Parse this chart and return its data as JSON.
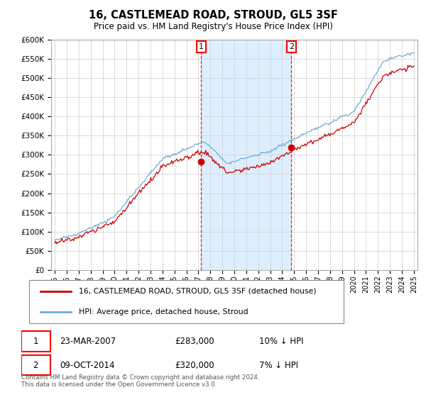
{
  "title": "16, CASTLEMEAD ROAD, STROUD, GL5 3SF",
  "subtitle": "Price paid vs. HM Land Registry's House Price Index (HPI)",
  "legend_line1": "16, CASTLEMEAD ROAD, STROUD, GL5 3SF (detached house)",
  "legend_line2": "HPI: Average price, detached house, Stroud",
  "annotation1_date": "23-MAR-2007",
  "annotation1_price": "£283,000",
  "annotation1_hpi": "10% ↓ HPI",
  "annotation2_date": "09-OCT-2014",
  "annotation2_price": "£320,000",
  "annotation2_hpi": "7% ↓ HPI",
  "footer": "Contains HM Land Registry data © Crown copyright and database right 2024.\nThis data is licensed under the Open Government Licence v3.0.",
  "hpi_color": "#6baed6",
  "price_color": "#cc0000",
  "shade_color": "#ddeeff",
  "ylim": [
    0,
    600000
  ],
  "yticks": [
    0,
    50000,
    100000,
    150000,
    200000,
    250000,
    300000,
    350000,
    400000,
    450000,
    500000,
    550000,
    600000
  ],
  "sale1_x": 2007.23,
  "sale1_y": 283000,
  "sale2_x": 2014.77,
  "sale2_y": 320000,
  "xmin": 1995,
  "xmax": 2025
}
